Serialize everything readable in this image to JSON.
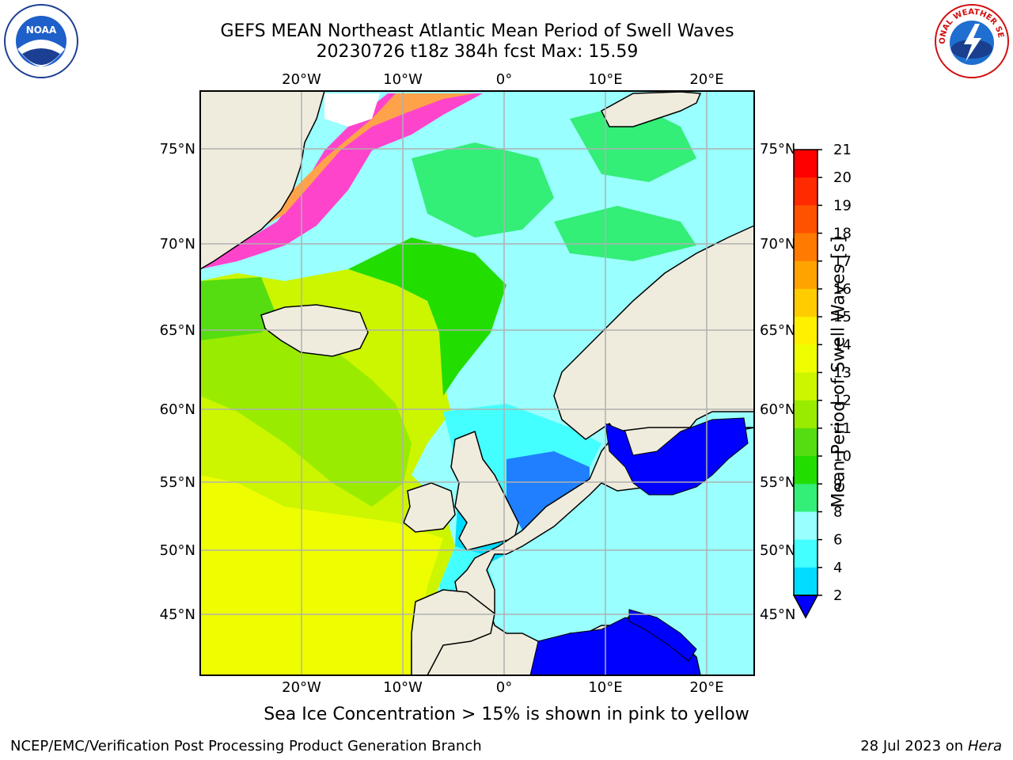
{
  "title_line1": "GEFS MEAN Northeast Atlantic Mean Period of Swell Waves",
  "title_line2": "20230726 t18z 384h fcst   Max: 15.59",
  "logos": {
    "noaa": "NOAA",
    "nws": "NATIONAL WEATHER SERVICE"
  },
  "map": {
    "lon_labels": [
      "20°W",
      "10°W",
      "0°",
      "10°E",
      "20°E"
    ],
    "lat_labels": [
      "75°N",
      "70°N",
      "65°N",
      "60°N",
      "55°N",
      "50°N",
      "45°N"
    ],
    "colors": {
      "land": "#efecdd",
      "ice_pink": "#ff44cc",
      "ice_orange": "#ffa34a",
      "grid": "#b0b0b0"
    }
  },
  "colorbar": {
    "label": "Mean Period of Swell Waves [s]",
    "ticks": [
      "21",
      "20",
      "19",
      "18",
      "17",
      "16",
      "15",
      "14",
      "13",
      "12",
      "11",
      "10",
      "9",
      "8",
      "6",
      "4",
      "2"
    ],
    "colors": [
      "#ff0000",
      "#ff2a00",
      "#ff5200",
      "#ff7a00",
      "#ffa300",
      "#ffcc00",
      "#fff000",
      "#eefe00",
      "#ccf500",
      "#99ec00",
      "#55dd11",
      "#22dd00",
      "#33ee77",
      "#99ffff",
      "#44ffff",
      "#00ddff",
      "#0066ff"
    ],
    "under_color": "#0000ff"
  },
  "caption": "Sea Ice Concentration > 15% is shown in pink to yellow",
  "footer_left": "NCEP/EMC/Verification Post Processing Product Generation Branch",
  "footer_right_date": "28 Jul 2023 on",
  "footer_right_host": "Hera"
}
